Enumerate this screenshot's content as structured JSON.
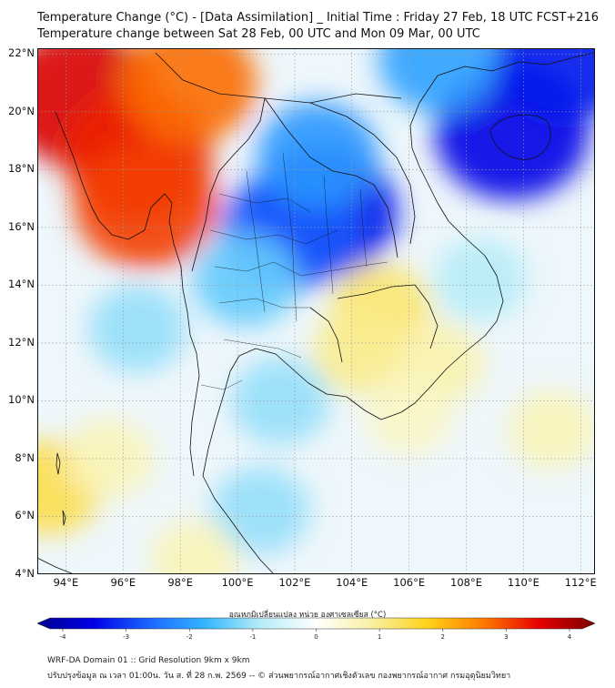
{
  "header": {
    "title": "Temperature Change (°C) - [Data Assimilation] _ Initial Time : Friday 27 Feb, 18 UTC FCST+216",
    "subtitle": "Temperature change between Sat 28 Feb, 00 UTC and Mon 09 Mar, 00 UTC"
  },
  "map": {
    "lat_labels": [
      "22°N",
      "20°N",
      "18°N",
      "16°N",
      "14°N",
      "12°N",
      "10°N",
      "8°N",
      "6°N",
      "4°N"
    ],
    "lon_labels": [
      "94°E",
      "96°E",
      "98°E",
      "100°E",
      "102°E",
      "104°E",
      "106°E",
      "108°E",
      "110°E",
      "112°E"
    ],
    "lat_range": [
      4,
      22.2
    ],
    "lon_range": [
      93,
      112.5
    ],
    "field_blobs": [
      {
        "region": "Myanmar west coast",
        "lon": 94.5,
        "lat": 20.5,
        "value": 3.3
      },
      {
        "region": "Myanmar central",
        "lon": 96.5,
        "lat": 18.5,
        "value": 3.0
      },
      {
        "region": "Myanmar south",
        "lon": 96.8,
        "lat": 16.8,
        "value": 2.8
      },
      {
        "region": "Shan north",
        "lon": 98.3,
        "lat": 21.0,
        "value": 2.5
      },
      {
        "region": "Northeast Thailand",
        "lon": 103.0,
        "lat": 16.5,
        "value": -3.0
      },
      {
        "region": "Northeast Thailand west",
        "lon": 101.8,
        "lat": 15.9,
        "value": -2.5
      },
      {
        "region": "Laos",
        "lon": 102.8,
        "lat": 18.5,
        "value": -1.9
      },
      {
        "region": "Hainan",
        "lon": 109.6,
        "lat": 19.3,
        "value": -3.2
      },
      {
        "region": "South China north-east",
        "lon": 111.5,
        "lat": 22.0,
        "value": -3.0
      },
      {
        "region": "Gulf of Tonkin",
        "lon": 107.0,
        "lat": 21.8,
        "value": -1.8
      },
      {
        "region": "Central Thailand",
        "lon": 100.3,
        "lat": 14.2,
        "value": -1.3
      },
      {
        "region": "Andaman Sea",
        "lon": 96.5,
        "lat": 12.5,
        "value": -1.0
      },
      {
        "region": "Gulf of Thailand",
        "lon": 101.5,
        "lat": 10.0,
        "value": -1.0
      },
      {
        "region": "South China Sea central",
        "lon": 108.5,
        "lat": 14.2,
        "value": -0.8
      },
      {
        "region": "Cambodia",
        "lon": 105.0,
        "lat": 13.2,
        "value": 1.1
      },
      {
        "region": "Cambodia south",
        "lon": 104.3,
        "lat": 11.7,
        "value": 0.9
      },
      {
        "region": "Southern Vietnam",
        "lon": 107.0,
        "lat": 11.3,
        "value": 0.7
      },
      {
        "region": "Mekong Delta",
        "lon": 106.0,
        "lat": 9.5,
        "value": 0.5
      },
      {
        "region": "Sumatra north coast",
        "lon": 93.4,
        "lat": 7.0,
        "value": 1.3
      },
      {
        "region": "Bay of Bengal south",
        "lon": 95.5,
        "lat": 8.0,
        "value": 0.6
      },
      {
        "region": "South China Sea south",
        "lon": 111.0,
        "lat": 9.0,
        "value": 0.6
      },
      {
        "region": "Malay peninsula",
        "lon": 100.8,
        "lat": 6.2,
        "value": -1.0
      },
      {
        "region": "Strait of Malacca",
        "lon": 98.5,
        "lat": 4.5,
        "value": 0.6
      }
    ]
  },
  "colorbar": {
    "label": "อุณหภูมิเปลี่ยนแปลง หน่วย องศาเซลเซียส (°C)",
    "tick_labels": [
      "-4",
      "-3",
      "-2",
      "-1",
      "0",
      "1",
      "2",
      "3",
      "4"
    ],
    "min": -4,
    "max": 4,
    "colors": [
      "#00008f",
      "#0000e6",
      "#1a66ff",
      "#33b5ff",
      "#b6ecf7",
      "#ffffff",
      "#f8f0a0",
      "#ffd21a",
      "#ff7a00",
      "#e60000",
      "#7a0000"
    ]
  },
  "footer": {
    "line1": "WRF-DA Domain 01 :: Grid Resolution 9km x 9km",
    "line2": "ปรับปรุงข้อมูล ณ เวลา 01:00น. วัน ส. ที่ 28 ก.พ. 2569 -- © ส่วนพยากรณ์อากาศเชิงตัวเลข กองพยากรณ์อากาศ กรมอุตุนิยมวิทยา"
  }
}
